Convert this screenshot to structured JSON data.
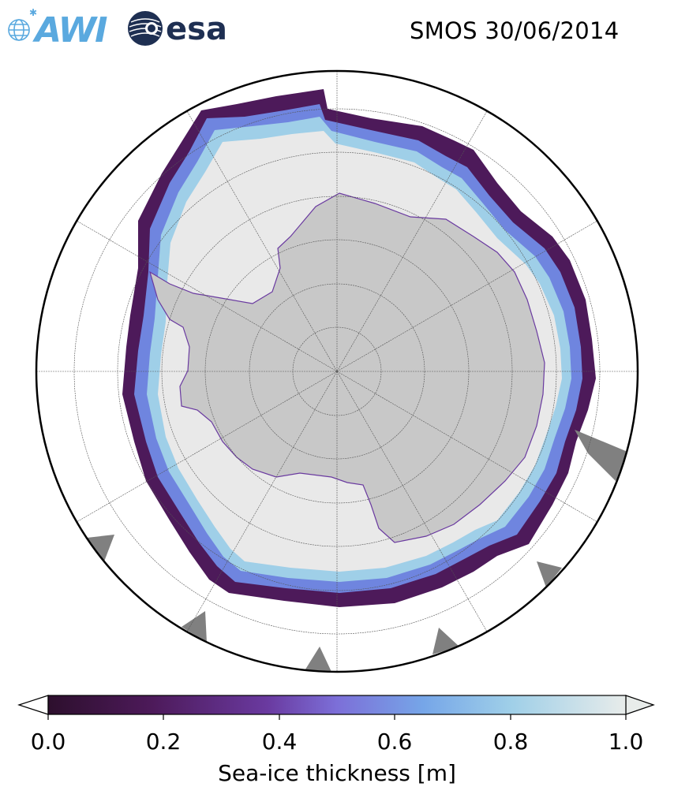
{
  "header": {
    "title": "SMOS 30/06/2014",
    "logos": [
      {
        "name": "AWI",
        "text": "AWI",
        "color": "#5aa9df"
      },
      {
        "name": "esa",
        "text": "esa",
        "color": "#1e2f52"
      }
    ]
  },
  "map": {
    "projection": "south-polar-stereographic",
    "land_color": "#c8c8c8",
    "pack_ice_color": "#e9e9e9",
    "ocean_color": "#ffffff",
    "missing_color": "#808080",
    "graticule": true
  },
  "colorbar": {
    "label": "Sea-ice thickness [m]",
    "ticks": [
      "0.0",
      "0.2",
      "0.4",
      "0.6",
      "0.8",
      "1.0"
    ],
    "tick_values": [
      0.0,
      0.2,
      0.4,
      0.6,
      0.8,
      1.0
    ],
    "range": [
      0.0,
      1.0
    ],
    "extend": "both",
    "colormap_stops": [
      "#2d0f2d",
      "#4d1a5a",
      "#6a3aa0",
      "#7c6fd8",
      "#76a6e8",
      "#9fcfe8",
      "#e8ecea"
    ]
  }
}
